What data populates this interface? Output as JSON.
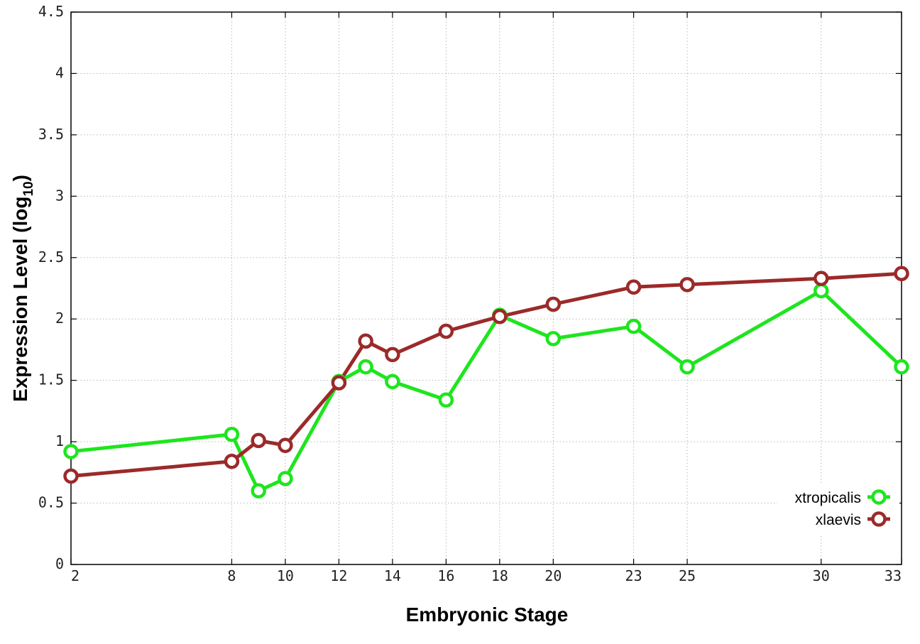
{
  "chart_data": {
    "type": "line",
    "title": "",
    "xlabel": "Embryonic Stage",
    "ylabel_main": "Expression Level (log",
    "ylabel_sub": "10",
    "ylabel_close": ")",
    "x": [
      2,
      8,
      9,
      10,
      12,
      13,
      14,
      16,
      18,
      20,
      23,
      25,
      30,
      33
    ],
    "x_tick_values": [
      2,
      8,
      10,
      12,
      14,
      16,
      18,
      20,
      23,
      25,
      30,
      33
    ],
    "x_tick_labels": [
      "2",
      "8",
      "10",
      "12",
      "14",
      "16",
      "18",
      "20",
      "23",
      "25",
      "30",
      "33"
    ],
    "y_tick_values": [
      0,
      0.5,
      1,
      1.5,
      2,
      2.5,
      3,
      3.5,
      4,
      4.5
    ],
    "y_tick_labels": [
      "0",
      "0.5",
      "1",
      "1.5",
      "2",
      "2.5",
      "3",
      "3.5",
      "4",
      "4.5"
    ],
    "ylim": [
      0,
      4.5
    ],
    "grid": true,
    "legend_position": "bottom-right",
    "series": [
      {
        "name": "xtropicalis",
        "color": "#1ee51e",
        "values": [
          0.92,
          1.06,
          0.6,
          0.7,
          1.49,
          1.61,
          1.49,
          1.34,
          2.03,
          1.84,
          1.94,
          1.61,
          2.23,
          1.61
        ]
      },
      {
        "name": "xlaevis",
        "color": "#9b2a2a",
        "values": [
          0.72,
          0.84,
          1.01,
          0.97,
          1.48,
          1.82,
          1.71,
          1.9,
          2.02,
          2.12,
          2.26,
          2.28,
          2.33,
          2.37
        ]
      }
    ]
  }
}
